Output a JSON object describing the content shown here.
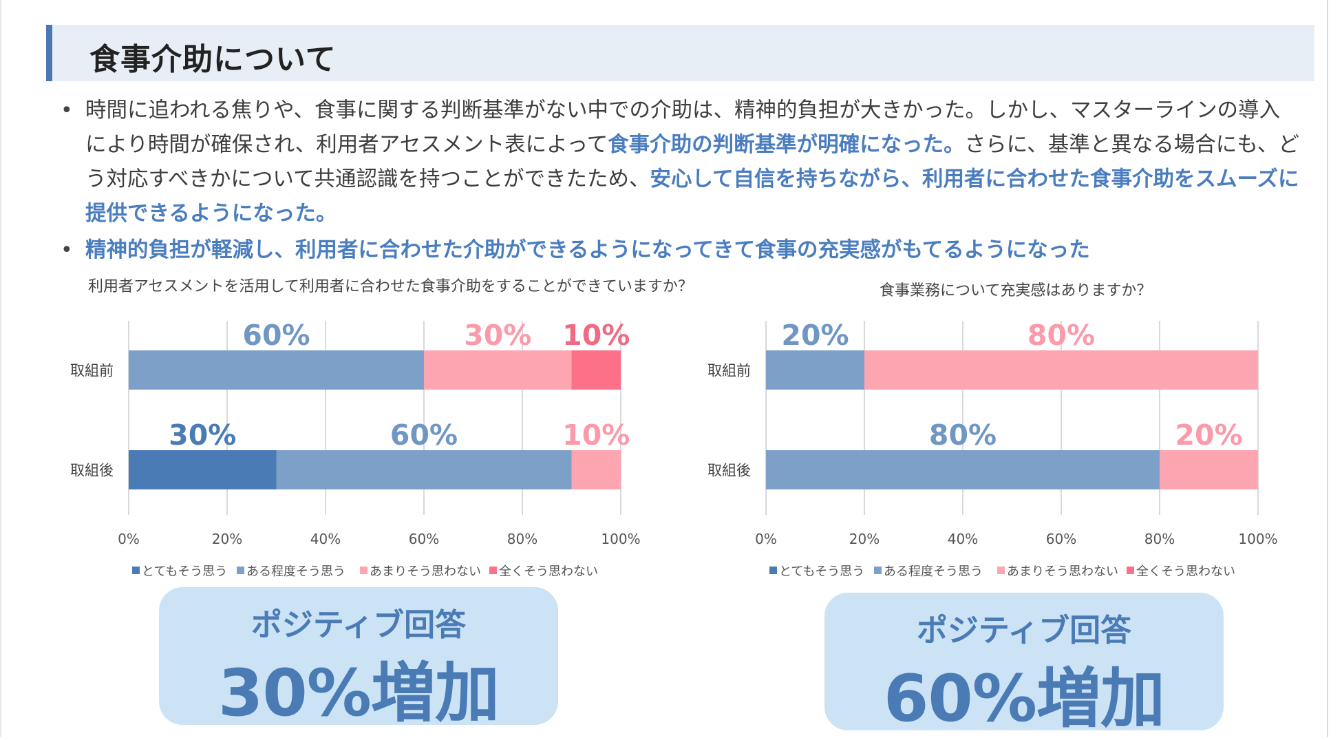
{
  "header": {
    "title": "食事介助について"
  },
  "bullets": [
    {
      "seg1": "時間に追われる焦りや、食事に関する判断基準がない中での介助は、精神的負担が大きかった。しかし、マスターラインの導入により時間が確保され、利用者アセスメント表によって",
      "hl1": "食事介助の判断基準が明確になった。",
      "seg2": "さらに、基準と異なる場合にも、どう対応すべきかについて共通認識を持つことができたため、",
      "hl2": "安心して自信を持ちながら、利用者に合わせた食事介助をスムーズに提供できるようになった。"
    },
    {
      "text": "精神的負担が軽減し、利用者に合わせた介助ができるようになってきて食事の充実感がもてるようになった"
    }
  ],
  "legend": [
    "とてもそう思う",
    "ある程度そう思う",
    "あまりそう思わない",
    "全くそう思わない"
  ],
  "colors": [
    "#4a7bb5",
    "#7da0c9",
    "#fda6b2",
    "#fc7088"
  ],
  "label_colors": [
    "#4a7bb5",
    "#7097c4",
    "#fa9aaa",
    "#f06a83"
  ],
  "callouts": [
    {
      "line1": "ポジティブ回答",
      "line2": "30%増加"
    },
    {
      "line1": "ポジティブ回答",
      "line2": "60%増加"
    }
  ],
  "chart_data": [
    {
      "type": "bar",
      "orientation": "horizontal",
      "stacked": true,
      "title": "利用者アセスメントを活用して利用者に合わせた食事介助をすることができていますか？",
      "categories": [
        "取組前",
        "取組後"
      ],
      "series": [
        {
          "name": "とてもそう思う",
          "values": [
            0,
            30
          ]
        },
        {
          "name": "ある程度そう思う",
          "values": [
            60,
            60
          ]
        },
        {
          "name": "あまりそう思わない",
          "values": [
            30,
            10
          ]
        },
        {
          "name": "全くそう思わない",
          "values": [
            10,
            0
          ]
        }
      ],
      "xlim": [
        0,
        100
      ],
      "xticks": [
        "0%",
        "20%",
        "40%",
        "60%",
        "80%",
        "100%"
      ],
      "grid": true,
      "legend_position": "bottom"
    },
    {
      "type": "bar",
      "orientation": "horizontal",
      "stacked": true,
      "title": "食事業務について充実感はありますか？",
      "categories": [
        "取組前",
        "取組後"
      ],
      "series": [
        {
          "name": "とてもそう思う",
          "values": [
            0,
            0
          ]
        },
        {
          "name": "ある程度そう思う",
          "values": [
            20,
            80
          ]
        },
        {
          "name": "あまりそう思わない",
          "values": [
            80,
            20
          ]
        },
        {
          "name": "全くそう思わない",
          "values": [
            0,
            0
          ]
        }
      ],
      "xlim": [
        0,
        100
      ],
      "xticks": [
        "0%",
        "20%",
        "40%",
        "60%",
        "80%",
        "100%"
      ],
      "grid": true,
      "legend_position": "bottom"
    }
  ]
}
